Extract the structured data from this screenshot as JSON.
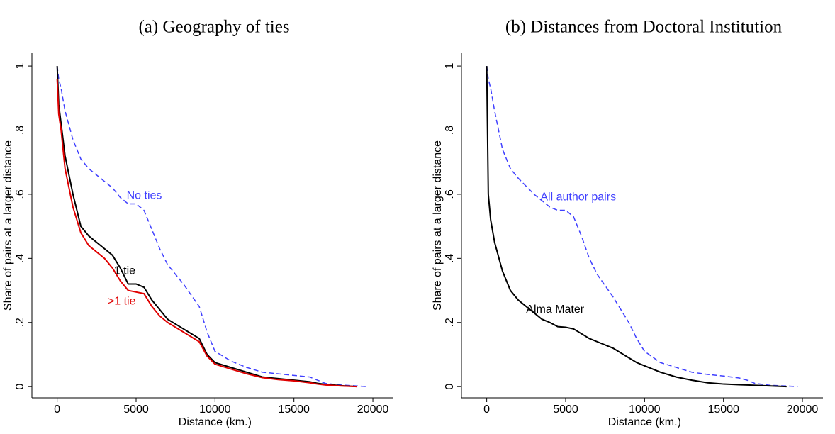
{
  "chart_data": [
    {
      "type": "line",
      "title": "(a) Geography of ties",
      "xlabel": "Distance (km.)",
      "ylabel": "Share of pairs at a larger distance",
      "x": [
        0,
        100,
        250,
        500,
        1000,
        1500,
        2000,
        3000,
        3500,
        4000,
        4500,
        5000,
        5500,
        6000,
        6500,
        7000,
        8000,
        9000,
        9500,
        10000,
        11000,
        12000,
        13000,
        14000,
        15000,
        16000,
        16500,
        17000,
        18000,
        19000,
        19700
      ],
      "series": [
        {
          "name": "No ties",
          "color": "#4040ff",
          "dashed": true,
          "values": [
            1,
            0.96,
            0.93,
            0.86,
            0.77,
            0.71,
            0.68,
            0.64,
            0.62,
            0.59,
            0.57,
            0.57,
            0.55,
            0.49,
            0.43,
            0.38,
            0.32,
            0.25,
            0.17,
            0.11,
            0.08,
            0.06,
            0.045,
            0.04,
            0.035,
            0.03,
            0.02,
            0.01,
            0.005,
            0.002,
            0
          ]
        },
        {
          "name": "1 tie",
          "color": "#000000",
          "dashed": false,
          "values": [
            1,
            0.88,
            0.82,
            0.72,
            0.6,
            0.5,
            0.47,
            0.43,
            0.41,
            0.37,
            0.32,
            0.32,
            0.31,
            0.27,
            0.24,
            0.21,
            0.18,
            0.15,
            0.1,
            0.075,
            0.06,
            0.045,
            0.03,
            0.025,
            0.02,
            0.015,
            0.01,
            0.007,
            0.003,
            0,
            null
          ]
        },
        {
          "name": ">1 tie",
          "color": "#e00000",
          "dashed": false,
          "values": [
            0.96,
            0.85,
            0.8,
            0.68,
            0.56,
            0.48,
            0.44,
            0.4,
            0.37,
            0.33,
            0.3,
            0.295,
            0.29,
            0.25,
            0.22,
            0.2,
            0.17,
            0.14,
            0.095,
            0.07,
            0.055,
            0.04,
            0.028,
            0.022,
            0.018,
            0.012,
            0.008,
            0.005,
            0.002,
            0,
            null
          ]
        }
      ],
      "xlim": [
        -1600,
        21300
      ],
      "ylim": [
        -0.035,
        1.04
      ],
      "xticks": [
        0,
        5000,
        10000,
        15000,
        20000
      ],
      "yticks": [
        0,
        {
          "value": 0.2,
          "label": ".2"
        },
        {
          "value": 0.4,
          "label": ".4"
        },
        {
          "value": 0.6,
          "label": ".6"
        },
        {
          "value": 0.8,
          "label": ".8"
        },
        1
      ]
    },
    {
      "type": "line",
      "title": "(b) Distances from Doctoral Institution",
      "xlabel": "Distance (km.)",
      "ylabel": "Share of pairs at a larger distance",
      "x": [
        0,
        100,
        250,
        500,
        1000,
        1500,
        2000,
        3000,
        3500,
        4000,
        4500,
        5000,
        5500,
        6000,
        6500,
        7000,
        8000,
        9000,
        9500,
        10000,
        11000,
        12000,
        13000,
        14000,
        15000,
        16000,
        16500,
        17000,
        18000,
        19000,
        19700
      ],
      "series": [
        {
          "name": "All author pairs",
          "color": "#4040ff",
          "dashed": true,
          "values": [
            1,
            0.96,
            0.93,
            0.86,
            0.74,
            0.68,
            0.65,
            0.6,
            0.58,
            0.56,
            0.55,
            0.55,
            0.53,
            0.47,
            0.4,
            0.35,
            0.28,
            0.2,
            0.15,
            0.11,
            0.075,
            0.06,
            0.045,
            0.038,
            0.033,
            0.027,
            0.02,
            0.01,
            0.004,
            0.002,
            0
          ]
        },
        {
          "name": "Alma Mater",
          "color": "#000000",
          "dashed": false,
          "values": [
            1,
            0.6,
            0.52,
            0.45,
            0.36,
            0.3,
            0.27,
            0.23,
            0.21,
            0.2,
            0.187,
            0.185,
            0.18,
            0.165,
            0.15,
            0.14,
            0.12,
            0.09,
            0.075,
            0.065,
            0.045,
            0.03,
            0.02,
            0.012,
            0.008,
            0.006,
            0.005,
            0.004,
            0.002,
            0,
            null
          ]
        }
      ],
      "xlim": [
        -1600,
        21300
      ],
      "ylim": [
        -0.035,
        1.04
      ],
      "xticks": [
        0,
        5000,
        10000,
        15000,
        20000
      ],
      "yticks": [
        0,
        {
          "value": 0.2,
          "label": ".2"
        },
        {
          "value": 0.4,
          "label": ".4"
        },
        {
          "value": 0.6,
          "label": ".6"
        },
        {
          "value": 0.8,
          "label": ".8"
        },
        1
      ]
    }
  ]
}
